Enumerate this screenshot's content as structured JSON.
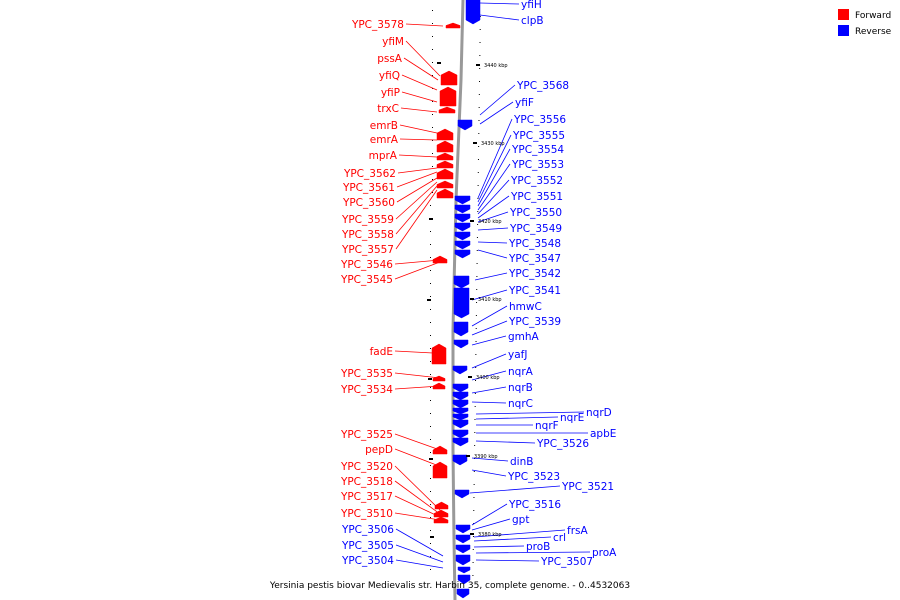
{
  "caption": "Yersinia pestis biovar Medievalis str. Harbin 35, complete genome. - 0..4532063",
  "legend": [
    {
      "label": "Forward",
      "color": "#ff0000"
    },
    {
      "label": "Reverse",
      "color": "#0000ff"
    }
  ],
  "colors": {
    "forward": "#ff0000",
    "reverse": "#0000ff",
    "backbone": "#999999"
  },
  "ticks": [
    "3440 kbp",
    "3430 kbp",
    "3420 kbp",
    "3410 kbp",
    "3400 kbp",
    "3390 kbp",
    "3380 kbp"
  ],
  "forward_labels": [
    "YPC_3578",
    "yfiM",
    "pssA",
    "yfiQ",
    "yfiP",
    "trxC",
    "emrB",
    "emrA",
    "mprA",
    "YPC_3562",
    "YPC_3561",
    "YPC_3560",
    "YPC_3559",
    "YPC_3558",
    "YPC_3557",
    "YPC_3546",
    "YPC_3545",
    "fadE",
    "YPC_3535",
    "YPC_3534",
    "YPC_3525",
    "pepD",
    "YPC_3520",
    "YPC_3518",
    "YPC_3517",
    "YPC_3510"
  ],
  "reverse_left_labels": [
    "YPC_3506",
    "YPC_3505",
    "YPC_3504"
  ],
  "reverse_labels": [
    "yfiH",
    "clpB",
    "YPC_3568",
    "yfiF",
    "YPC_3556",
    "YPC_3555",
    "YPC_3554",
    "YPC_3553",
    "YPC_3552",
    "YPC_3551",
    "YPC_3550",
    "YPC_3549",
    "YPC_3548",
    "YPC_3547",
    "YPC_3542",
    "YPC_3541",
    "hmwC",
    "YPC_3539",
    "gmhA",
    "yafJ",
    "nqrA",
    "nqrB",
    "nqrC",
    "nqrD",
    "nqrE",
    "nqrF",
    "apbE",
    "YPC_3526",
    "dinB",
    "YPC_3523",
    "YPC_3521",
    "YPC_3516",
    "gpt",
    "frsA",
    "crl",
    "proB",
    "proA",
    "YPC_3507"
  ]
}
